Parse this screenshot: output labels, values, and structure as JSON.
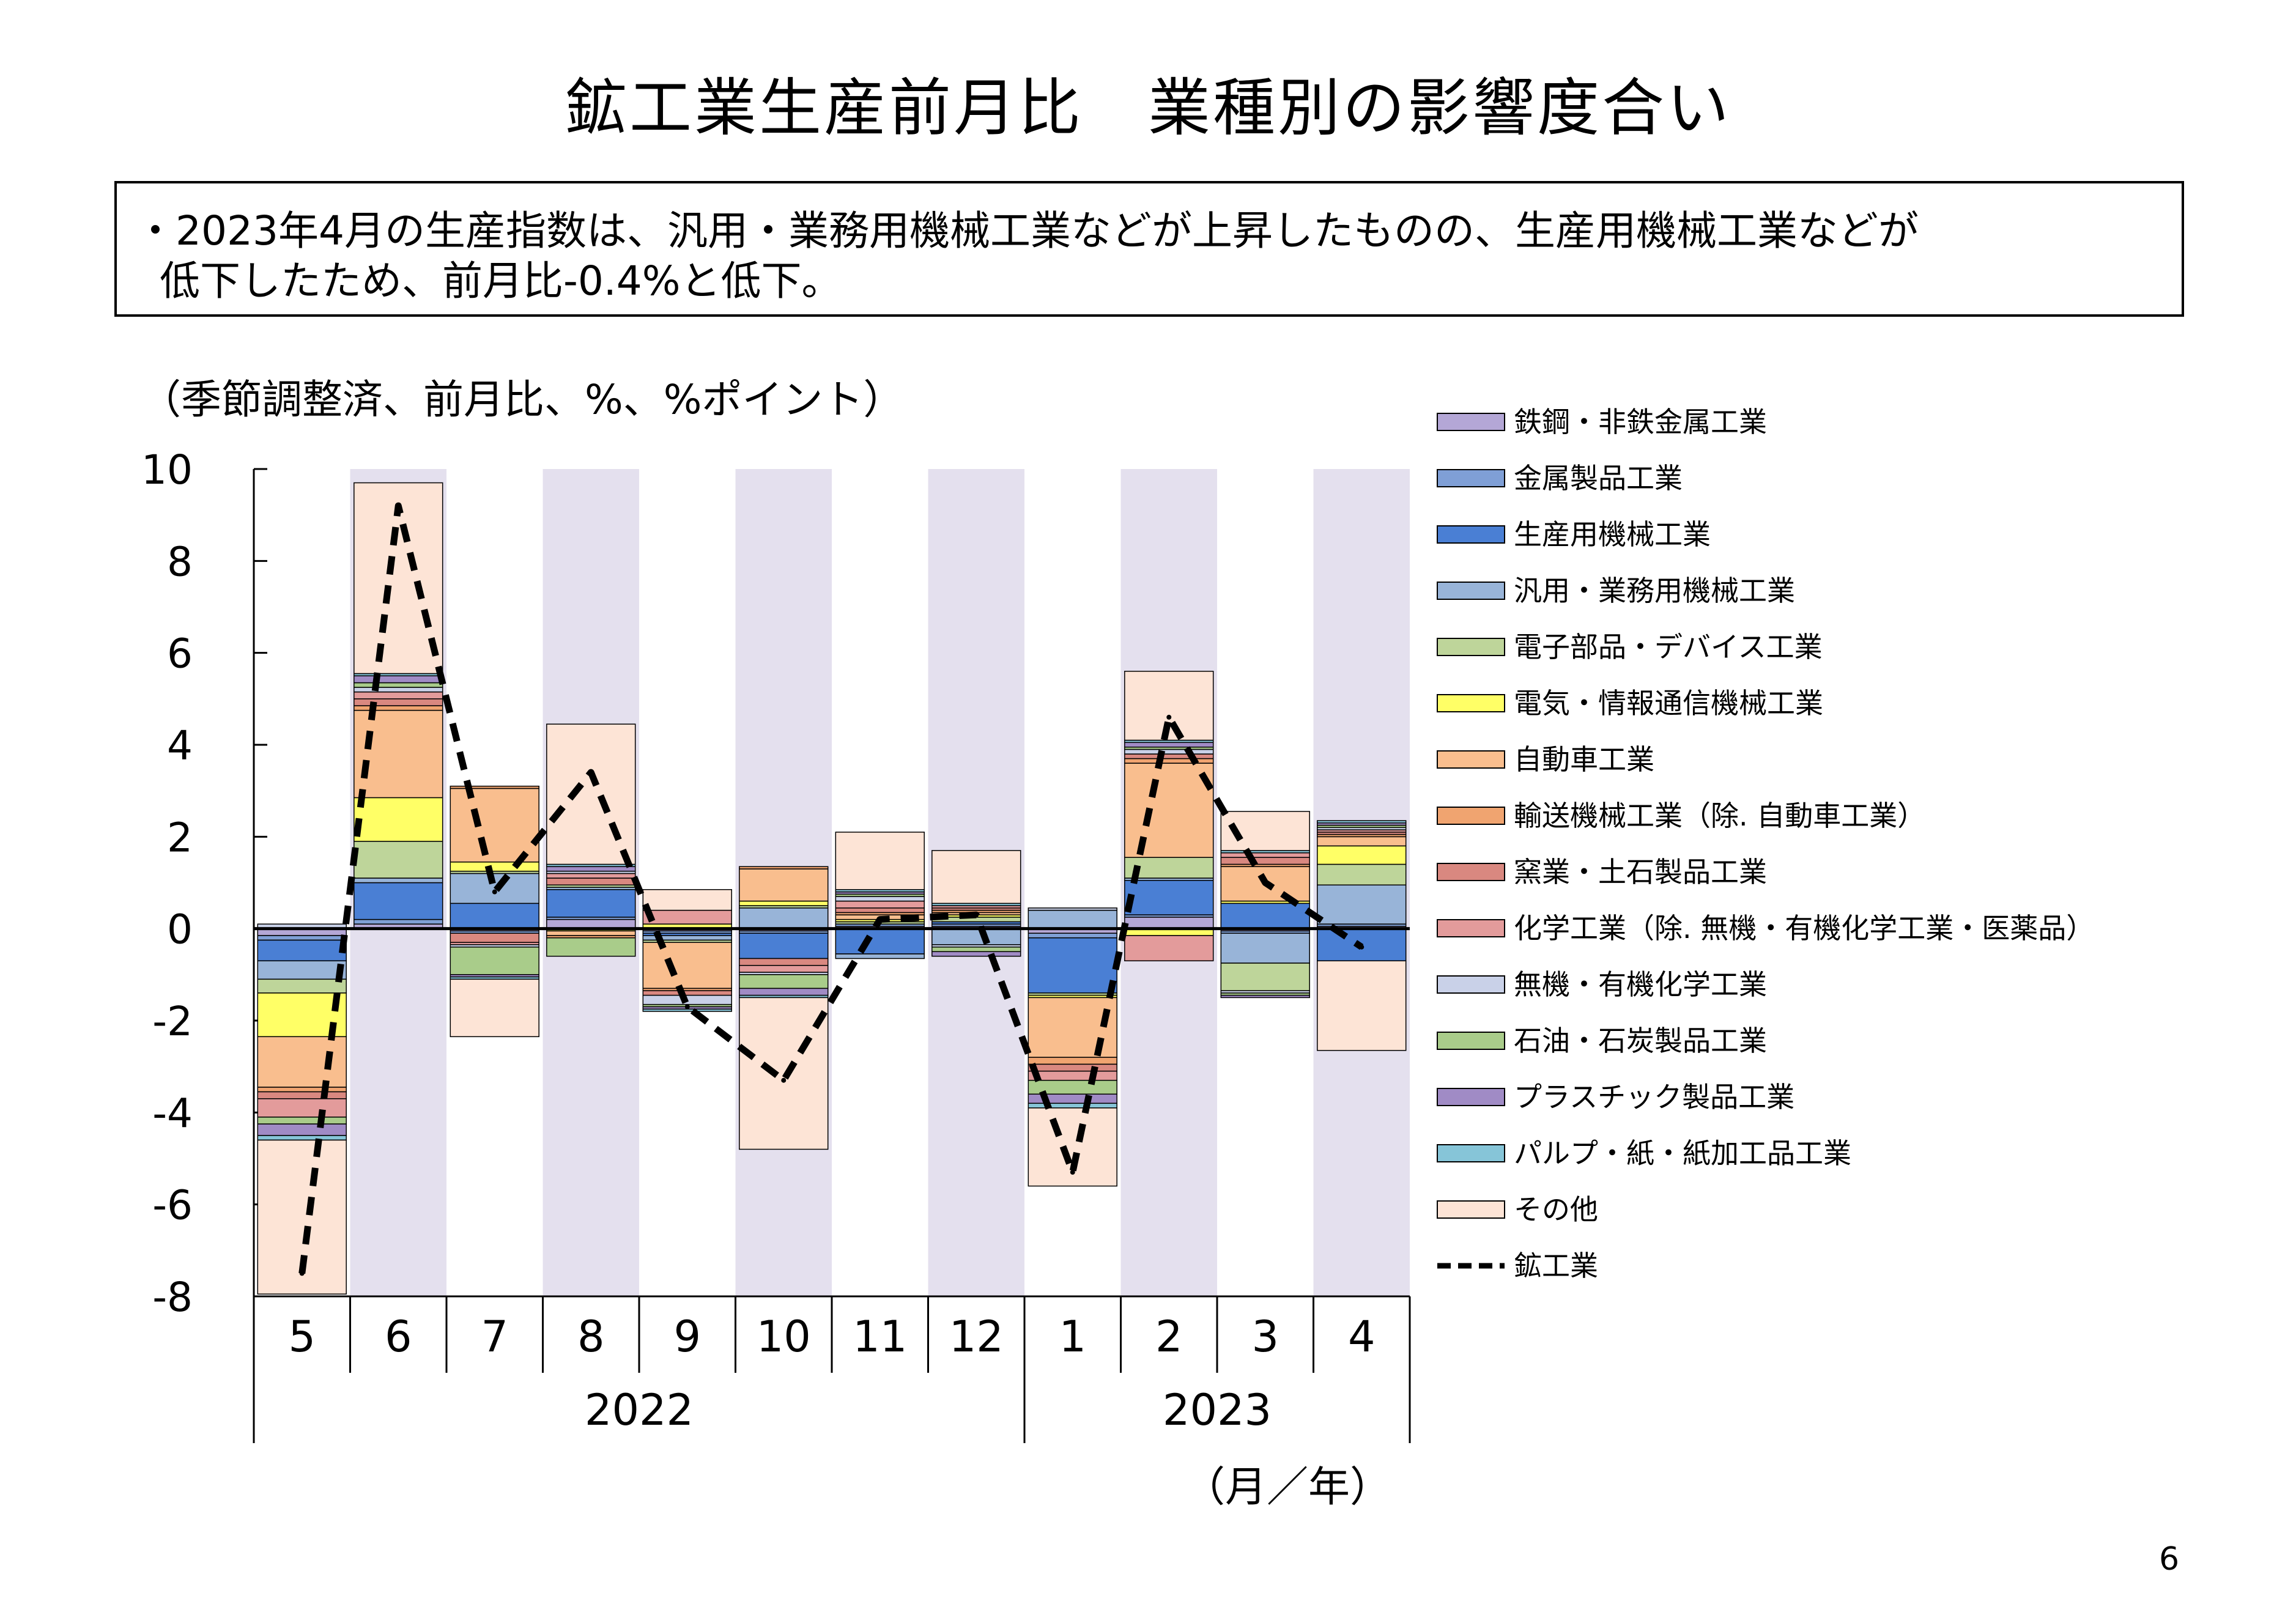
{
  "title": "鉱工業生産前月比　業種別の影響度合い",
  "summary": {
    "line1": "・2023年4月の生産指数は、汎用・業務用機械工業などが上昇したものの、生産用機械工業などが",
    "line2": "低下したため、前月比-0.4%と低下。"
  },
  "unit_label": "（季節調整済、前月比、%、%ポイント）",
  "page_number": "6",
  "chart_data": {
    "type": "bar",
    "stacked": true,
    "categories": [
      "5",
      "6",
      "7",
      "8",
      "9",
      "10",
      "11",
      "12",
      "1",
      "2",
      "3",
      "4"
    ],
    "year_groups": [
      {
        "label": "2022",
        "start": 0,
        "end": 7
      },
      {
        "label": "2023",
        "start": 8,
        "end": 11
      }
    ],
    "xunit_label": "（月／年）",
    "ylim": [
      -8,
      10
    ],
    "yticks": [
      "10",
      "8",
      "6",
      "4",
      "2",
      "0",
      "-2",
      "-4",
      "-6",
      "-8"
    ],
    "shaded_months": [
      1,
      3,
      5,
      7,
      9,
      11
    ],
    "shade_color": "#e4e0ee",
    "series": [
      {
        "name": "鉄鋼・非鉄金属工業",
        "color": "#b4a7d6",
        "values": [
          -0.15,
          0.1,
          -0.05,
          0.2,
          -0.05,
          -0.05,
          0.05,
          0.05,
          -0.1,
          0.25,
          -0.05,
          0.05
        ]
      },
      {
        "name": "金属製品工業",
        "color": "#7f9fd6",
        "values": [
          -0.1,
          0.1,
          -0.05,
          0.05,
          -0.05,
          -0.05,
          0.05,
          0.05,
          -0.1,
          0.05,
          -0.05,
          0.05
        ]
      },
      {
        "name": "生産用機械工業",
        "color": "#4a7fd4",
        "values": [
          -0.45,
          0.8,
          0.55,
          0.6,
          -0.05,
          -0.55,
          -0.55,
          0.05,
          -1.2,
          0.75,
          0.55,
          -0.7
        ]
      },
      {
        "name": "汎用・業務用機械工業",
        "color": "#98b4d8",
        "values": [
          -0.4,
          0.1,
          0.65,
          0.05,
          -0.1,
          0.45,
          -0.1,
          -0.35,
          0.4,
          0.05,
          -0.65,
          0.85
        ]
      },
      {
        "name": "電子部品・デバイス工業",
        "color": "#bed59a",
        "values": [
          -0.3,
          0.8,
          0.05,
          0.05,
          -0.05,
          0.05,
          0.05,
          0.1,
          -0.05,
          0.45,
          -0.6,
          0.45
        ]
      },
      {
        "name": "電気・情報通信機械工業",
        "color": "#ffff66",
        "values": [
          -0.95,
          0.95,
          0.2,
          -0.05,
          0.1,
          0.1,
          0.05,
          0.05,
          -0.05,
          -0.15,
          0.05,
          0.4
        ]
      },
      {
        "name": "自動車工業",
        "color": "#f9be8e",
        "values": [
          -1.1,
          1.9,
          1.6,
          -0.1,
          -1.0,
          0.7,
          0.1,
          0.05,
          -1.3,
          2.05,
          0.75,
          0.2
        ]
      },
      {
        "name": "輸送機械工業（除. 自動車工業）",
        "color": "#f0a470",
        "values": [
          -0.1,
          0.1,
          0.05,
          -0.05,
          -0.05,
          0.05,
          0.05,
          0.05,
          -0.15,
          0.1,
          0.05,
          0.05
        ]
      },
      {
        "name": "窯業・土石製品工業",
        "color": "#d98880",
        "values": [
          -0.15,
          0.15,
          -0.2,
          0.15,
          -0.1,
          -0.15,
          0.1,
          0.05,
          -0.15,
          0.1,
          0.15,
          0.05
        ]
      },
      {
        "name": "化学工業（除. 無機・有機化学工業・医薬品）",
        "color": "#e39b9b",
        "values": [
          -0.4,
          0.15,
          -0.05,
          0.1,
          0.3,
          -0.15,
          0.15,
          0.05,
          -0.2,
          -0.55,
          0.1,
          0.05
        ]
      },
      {
        "name": "無機・有機化学工業",
        "color": "#c9d1e8",
        "values": [
          0.1,
          0.1,
          -0.05,
          0.05,
          -0.2,
          -0.05,
          0.1,
          -0.05,
          0.05,
          0.1,
          -0.05,
          0.05
        ]
      },
      {
        "name": "石油・石炭製品工業",
        "color": "#a9cc8a",
        "values": [
          -0.15,
          0.1,
          -0.6,
          -0.4,
          -0.05,
          -0.3,
          0.05,
          -0.1,
          -0.3,
          0.05,
          -0.05,
          0.05
        ]
      },
      {
        "name": "プラスチック製品工業",
        "color": "#a08bc5",
        "values": [
          -0.25,
          0.15,
          -0.05,
          0.1,
          -0.05,
          -0.15,
          0.05,
          -0.1,
          -0.2,
          0.1,
          -0.05,
          0.05
        ]
      },
      {
        "name": "パルプ・紙・紙加工品工業",
        "color": "#86c5d8",
        "values": [
          -0.1,
          0.05,
          -0.05,
          0.05,
          -0.05,
          -0.05,
          0.05,
          0.05,
          -0.1,
          0.05,
          0.05,
          0.05
        ]
      },
      {
        "name": "その他",
        "color": "#fde4d6",
        "values": [
          -3.35,
          4.15,
          -1.25,
          3.05,
          0.45,
          -3.3,
          1.25,
          1.15,
          -1.7,
          1.5,
          0.85,
          -1.95
        ]
      },
      {
        "name": "鉱工業",
        "color": "#000000",
        "kind": "line",
        "dashed": true,
        "values": [
          -7.5,
          9.2,
          0.8,
          3.4,
          -1.7,
          -3.3,
          0.2,
          0.3,
          -5.3,
          4.6,
          1.0,
          -0.4
        ]
      }
    ]
  }
}
